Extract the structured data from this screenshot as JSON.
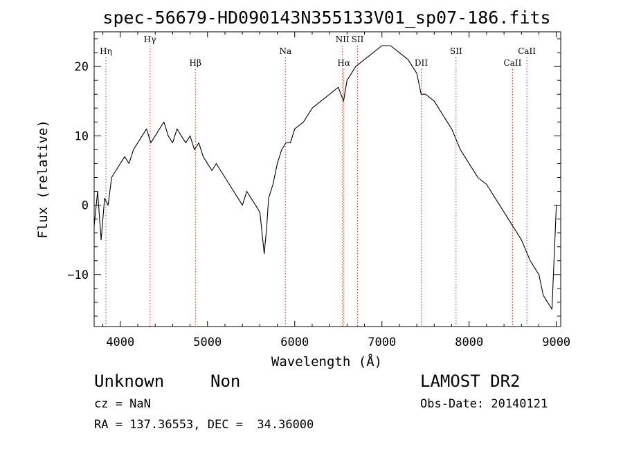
{
  "title": "spec-56679-HD090143N355133V01_sp07-186.fits",
  "xlabel": "Wavelength (Å)",
  "ylabel": "Flux (relative)",
  "info": {
    "class_label": "Unknown",
    "subclass_label": "Non",
    "survey": "LAMOST DR2",
    "cz": "cz = NaN",
    "obs_date": "Obs-Date: 20140121",
    "coords": "RA = 137.36553, DEC =  34.36000"
  },
  "chart_data": {
    "type": "line",
    "xlim": [
      3700,
      9050
    ],
    "ylim": [
      -17.5,
      25
    ],
    "xticks": [
      4000,
      5000,
      6000,
      7000,
      8000,
      9000
    ],
    "yticks": [
      -10,
      0,
      10,
      20
    ],
    "grid": false,
    "series": [
      {
        "x": [
          3700,
          3740,
          3780,
          3820,
          3860,
          3900,
          3950,
          4000,
          4050,
          4100,
          4150,
          4200,
          4250,
          4300,
          4350,
          4400,
          4450,
          4500,
          4550,
          4600,
          4650,
          4700,
          4750,
          4800,
          4850,
          4900,
          4950,
          5000,
          5050,
          5100,
          5150,
          5200,
          5250,
          5300,
          5350,
          5400,
          5450,
          5500,
          5550,
          5600,
          5650,
          5680,
          5700,
          5750,
          5800,
          5850,
          5900,
          5950,
          6000,
          6100,
          6200,
          6300,
          6400,
          6500,
          6560,
          6600,
          6700,
          6800,
          6900,
          7000,
          7100,
          7200,
          7300,
          7400,
          7450,
          7500,
          7600,
          7700,
          7800,
          7900,
          8000,
          8100,
          8200,
          8300,
          8400,
          8500,
          8600,
          8700,
          8800,
          8850,
          8900,
          8950,
          9000
        ],
        "y": [
          -3,
          2,
          -5,
          1,
          0,
          4,
          5,
          6,
          7,
          6,
          8,
          9,
          10,
          11,
          9,
          10,
          11,
          12,
          10,
          9,
          11,
          10,
          9,
          10,
          8,
          9,
          7,
          6,
          5,
          6,
          5,
          4,
          3,
          2,
          1,
          0,
          2,
          1,
          0,
          -1,
          -7,
          -3,
          1,
          3,
          6,
          8,
          9,
          9,
          11,
          12,
          14,
          15,
          16,
          17,
          15,
          18,
          20,
          21,
          22,
          23,
          23,
          22,
          21,
          19,
          16,
          16,
          15,
          13,
          11,
          8,
          6,
          4,
          3,
          1,
          -1,
          -3,
          -5,
          -8,
          -10,
          -13,
          -14,
          -15,
          0
        ]
      }
    ],
    "line_markers": [
      {
        "label": "Hη",
        "x": 3835,
        "row": "upper"
      },
      {
        "label": "Hγ",
        "x": 4340,
        "row": "top"
      },
      {
        "label": "Hβ",
        "x": 4861,
        "row": "lower"
      },
      {
        "label": "Na",
        "x": 5893,
        "row": "upper"
      },
      {
        "label": "NII",
        "x": 6548,
        "row": "top"
      },
      {
        "label": "Hα",
        "x": 6563,
        "row": "lower"
      },
      {
        "label": "SII",
        "x": 6720,
        "row": "top"
      },
      {
        "label": "DII",
        "x": 7450,
        "row": "lower"
      },
      {
        "label": "SII",
        "x": 7850,
        "row": "upper"
      },
      {
        "label": "CaII",
        "x": 8498,
        "row": "lower"
      },
      {
        "label": "CaII",
        "x": 8662,
        "row": "upper"
      }
    ]
  }
}
